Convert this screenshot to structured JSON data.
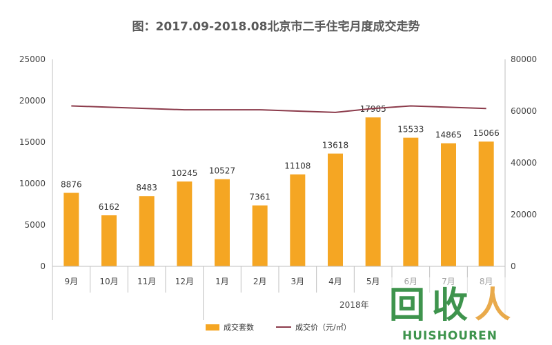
{
  "chart_data": {
    "type": "bar",
    "title": "图：2017.09-2018.08北京市二手住宅月度成交走势",
    "categories": [
      "9月",
      "10月",
      "11月",
      "12月",
      "1月",
      "2月",
      "3月",
      "4月",
      "5月",
      "6月",
      "7月",
      "8月"
    ],
    "group_label": "2018年",
    "group_start_index": 4,
    "series": [
      {
        "name": "成交套数",
        "type": "bar",
        "axis": "left",
        "color": "#F5A623",
        "values": [
          8876,
          6162,
          8483,
          10245,
          10527,
          7361,
          11108,
          13618,
          17985,
          15533,
          14865,
          15066
        ],
        "labels": [
          "8876",
          "6162",
          "8483",
          "10245",
          "10527",
          "7361",
          "11108",
          "13618",
          "17985",
          "15533",
          "14865",
          "15066"
        ]
      },
      {
        "name": "成交价（元/㎡）",
        "type": "line",
        "axis": "right",
        "color": "#8B3A4A",
        "values": [
          62000,
          61500,
          61000,
          60500,
          60500,
          60500,
          60000,
          59500,
          61000,
          62000,
          61500,
          61000
        ]
      }
    ],
    "y_left": {
      "min": 0,
      "max": 25000,
      "ticks": [
        "0",
        "5000",
        "10000",
        "15000",
        "20000",
        "25000"
      ]
    },
    "y_right": {
      "min": 0,
      "max": 80000,
      "ticks": [
        "0",
        "20000",
        "40000",
        "60000",
        "80000"
      ]
    },
    "legend": "bottom",
    "grid": false
  },
  "watermark": {
    "main": "回收人",
    "sub": "HUISHOUREN"
  }
}
